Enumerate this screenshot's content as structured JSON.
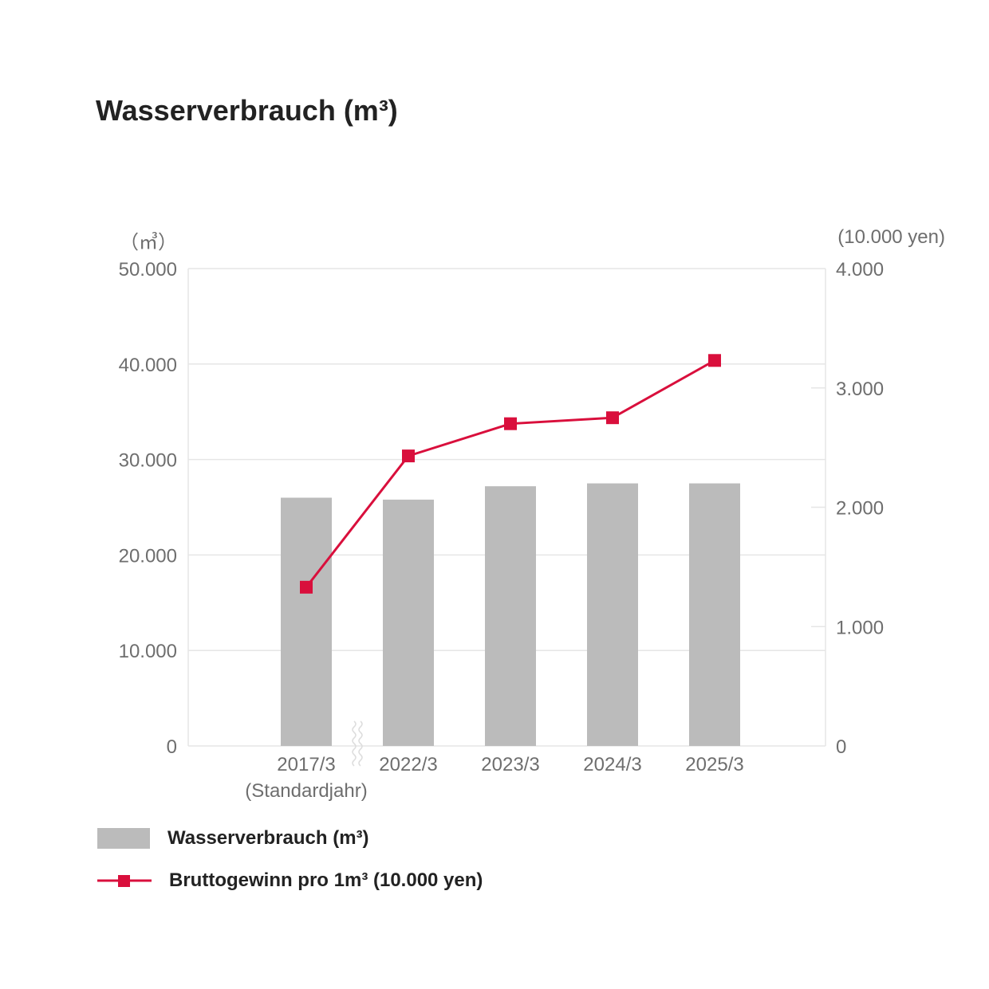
{
  "title": "Wasserverbrauch (m³)",
  "colors": {
    "bar": "#bbbbbb",
    "line": "#d90f3c",
    "grid": "#e6e6e6",
    "text": "#6e6e6e"
  },
  "chart_data": {
    "type": "bar+line",
    "categories": [
      "2017/3",
      "2022/3",
      "2023/3",
      "2024/3",
      "2025/3"
    ],
    "category_sublabels": [
      "(Standardjahr)",
      "",
      "",
      "",
      ""
    ],
    "axis_break_after_category": 0,
    "series": [
      {
        "name": "Wasserverbrauch (m³)",
        "type": "bar",
        "axis": "left",
        "values": [
          26000,
          25800,
          27200,
          27500,
          27500
        ]
      },
      {
        "name": "Bruttogewinn pro 1m³ (10.000 yen)",
        "type": "line",
        "axis": "right",
        "marker": "square",
        "values": [
          1330,
          2430,
          2700,
          2750,
          3230
        ]
      }
    ],
    "y_left": {
      "unit": "（㎥）",
      "ylim": [
        0,
        50000
      ],
      "ticks": [
        "0",
        "10.000",
        "20.000",
        "30.000",
        "40.000",
        "50.000"
      ]
    },
    "y_right": {
      "unit": "(10.000 yen)",
      "ylim": [
        0,
        4000
      ],
      "ticks": [
        "0",
        "1.000",
        "2.000",
        "3.000",
        "4.000"
      ]
    },
    "grid": true,
    "legend_position": "bottom-left"
  },
  "legend": {
    "bar_label": "Wasserverbrauch (m³)",
    "line_label": "Bruttogewinn pro 1m³ (10.000 yen)"
  }
}
